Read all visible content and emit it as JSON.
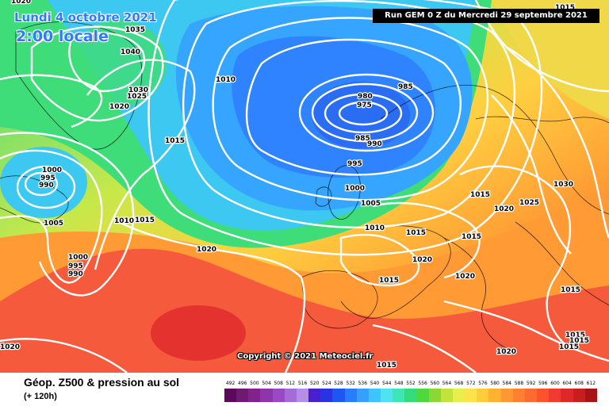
{
  "header": {
    "date_label": "Lundi 4 octobre 2021",
    "time_label": "2:00 locale",
    "run_label": "Run GEM 0 Z du Mercredi 29 septembre 2021"
  },
  "map": {
    "copyright": "Copyright © 2021 Meteociel.fr",
    "isobar_labels": [
      "1020",
      "1035",
      "1040",
      "1030",
      "1025",
      "1020",
      "1010",
      "980",
      "975",
      "985",
      "985",
      "990",
      "995",
      "1000",
      "1005",
      "1010",
      "1015",
      "1015",
      "1015",
      "1020",
      "1025",
      "1030",
      "1015",
      "1010",
      "1015",
      "1005",
      "1000",
      "995",
      "990",
      "1000",
      "995",
      "990",
      "1020",
      "1015",
      "1020",
      "1020",
      "1015",
      "1015",
      "1020",
      "1015",
      "1015",
      "1015",
      "1020",
      "1015"
    ]
  },
  "legend": {
    "title": "Géop. Z500 & pression au sol",
    "subtitle": "(+ 120h)",
    "scale_values": [
      "492",
      "496",
      "500",
      "504",
      "508",
      "512",
      "516",
      "520",
      "524",
      "528",
      "532",
      "536",
      "540",
      "544",
      "548",
      "552",
      "556",
      "560",
      "564",
      "568",
      "572",
      "576",
      "580",
      "584",
      "588",
      "592",
      "596",
      "600",
      "604",
      "608",
      "612"
    ],
    "scale_colors": [
      "#5a0a5a",
      "#6e1a73",
      "#82238c",
      "#8e35a8",
      "#9b48c4",
      "#a66bd6",
      "#b58fe6",
      "#4a1fcf",
      "#2a32e6",
      "#1f55f2",
      "#2a7cff",
      "#35a0ff",
      "#3cc5ff",
      "#4fe3f2",
      "#3de6b4",
      "#32dc78",
      "#4ed83c",
      "#8ad832",
      "#c2e23c",
      "#eaee4a",
      "#fde34a",
      "#ffcc3a",
      "#ffb22e",
      "#ff9830",
      "#ff8030",
      "#ff6a30",
      "#fc5230",
      "#f23a30",
      "#e02828",
      "#c81e1e",
      "#a81414"
    ],
    "colors": {
      "low_core": "#2a6cf2",
      "trough": "#35a5ff",
      "mid": "#3cc8f0",
      "green": "#3fdc7a",
      "yellow": "#f2e84a",
      "orange": "#ff9a3a",
      "red": "#f24a40",
      "contour": "#ffffff"
    }
  }
}
